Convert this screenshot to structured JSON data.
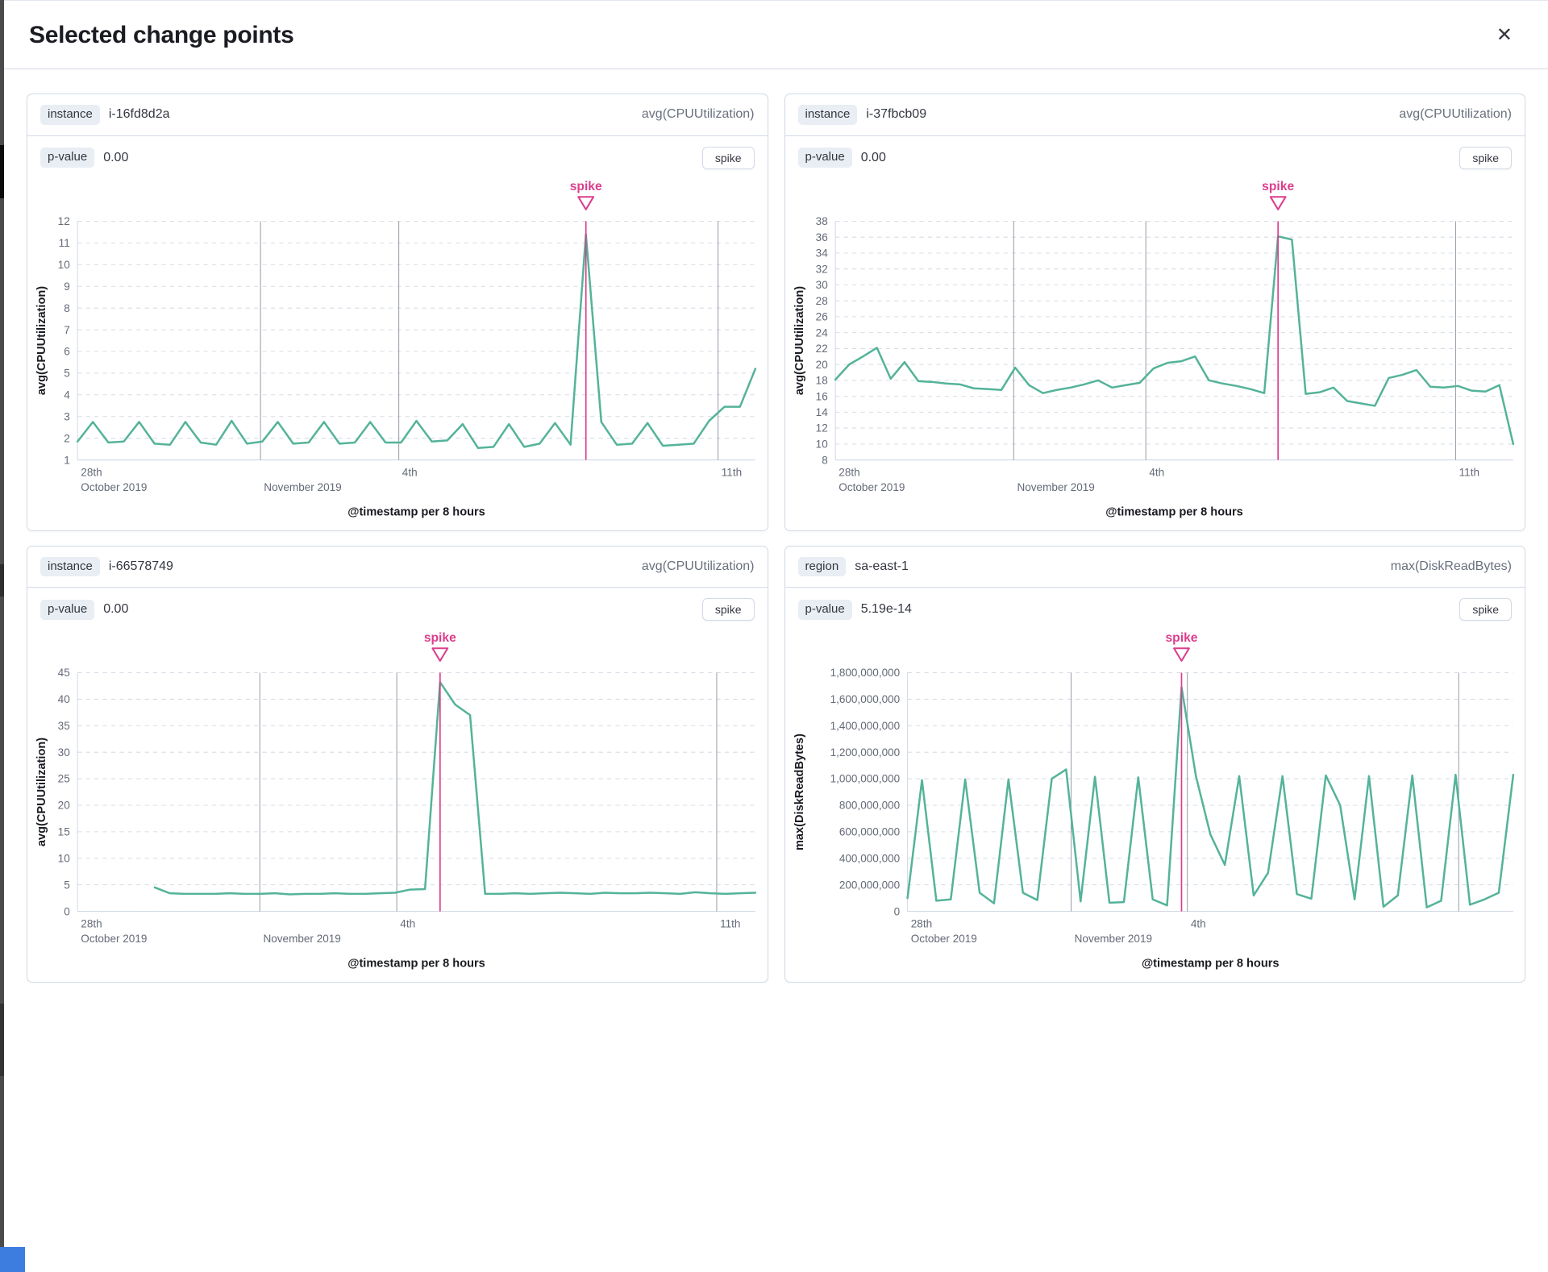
{
  "modal": {
    "title": "Selected change points",
    "close_label": "✕"
  },
  "colors": {
    "series_green": "#54b399",
    "accent_pink": "#dc3d8c",
    "grid_dashed": "#d8dce6",
    "grid_event": "#9aa0aa"
  },
  "panels": [
    {
      "field_label": "instance",
      "field_value": "i-16fd8d2a",
      "metric": "avg(CPUUtilization)",
      "p_label": "p-value",
      "p_value": "0.00",
      "change_type": "spike"
    },
    {
      "field_label": "instance",
      "field_value": "i-37fbcb09",
      "metric": "avg(CPUUtilization)",
      "p_label": "p-value",
      "p_value": "0.00",
      "change_type": "spike"
    },
    {
      "field_label": "instance",
      "field_value": "i-66578749",
      "metric": "avg(CPUUtilization)",
      "p_label": "p-value",
      "p_value": "0.00",
      "change_type": "spike"
    },
    {
      "field_label": "region",
      "field_value": "sa-east-1",
      "metric": "max(DiskReadBytes)",
      "p_label": "p-value",
      "p_value": "5.19e-14",
      "change_type": "spike"
    }
  ],
  "chart_data": [
    {
      "type": "line",
      "title": "",
      "ylabel": "avg(CPUUtilization)",
      "xlabel": "@timestamp per 8 hours",
      "ylim": [
        1,
        12
      ],
      "ytick_step": 1,
      "y_format": "plain",
      "grid": true,
      "x_ticks": [
        {
          "pos": 0.0,
          "row1": "28th",
          "row2": "October 2019",
          "line": false
        },
        {
          "pos": 0.27,
          "row1": "",
          "row2": "November 2019",
          "line": true
        },
        {
          "pos": 0.474,
          "row1": "4th",
          "row2": "",
          "line": true
        },
        {
          "pos": 0.945,
          "row1": "11th",
          "row2": "",
          "line": true
        }
      ],
      "annotation": {
        "label": "spike",
        "index": 33,
        "color": "#dc3d8c"
      },
      "series": [
        {
          "name": "avg(CPUUtilization)",
          "color": "#54b399",
          "x_start": 0,
          "values": [
            1.85,
            2.75,
            1.8,
            1.85,
            2.75,
            1.75,
            1.7,
            2.75,
            1.8,
            1.7,
            2.8,
            1.75,
            1.85,
            2.75,
            1.75,
            1.8,
            2.75,
            1.75,
            1.8,
            2.75,
            1.8,
            1.8,
            2.8,
            1.85,
            1.9,
            2.65,
            1.55,
            1.6,
            2.65,
            1.6,
            1.75,
            2.7,
            1.7,
            11.4,
            2.75,
            1.7,
            1.75,
            2.7,
            1.65,
            1.7,
            1.75,
            2.8,
            3.45,
            3.45,
            5.2
          ]
        }
      ]
    },
    {
      "type": "line",
      "title": "",
      "ylabel": "avg(CPUUtilization)",
      "xlabel": "@timestamp per 8 hours",
      "ylim": [
        8,
        38
      ],
      "ytick_step": 2,
      "y_format": "plain",
      "grid": true,
      "x_ticks": [
        {
          "pos": 0.0,
          "row1": "28th",
          "row2": "October 2019",
          "line": false
        },
        {
          "pos": 0.263,
          "row1": "",
          "row2": "November 2019",
          "line": true
        },
        {
          "pos": 0.458,
          "row1": "4th",
          "row2": "",
          "line": true
        },
        {
          "pos": 0.915,
          "row1": "11th",
          "row2": "",
          "line": true
        }
      ],
      "annotation": {
        "label": "spike",
        "index": 32,
        "color": "#dc3d8c"
      },
      "series": [
        {
          "name": "avg(CPUUtilization)",
          "color": "#54b399",
          "x_start": 0,
          "values": [
            18.1,
            20.0,
            21.0,
            22.1,
            18.2,
            20.3,
            17.9,
            17.8,
            17.6,
            17.5,
            17.0,
            16.9,
            16.8,
            19.6,
            17.4,
            16.4,
            16.8,
            17.1,
            17.5,
            18.0,
            17.1,
            17.4,
            17.7,
            19.5,
            20.2,
            20.4,
            21.0,
            18.0,
            17.6,
            17.3,
            16.9,
            16.4,
            36.1,
            35.7,
            16.3,
            16.5,
            17.1,
            15.4,
            15.1,
            14.8,
            18.3,
            18.7,
            19.3,
            17.2,
            17.1,
            17.3,
            16.7,
            16.6,
            17.4,
            10.0
          ]
        }
      ]
    },
    {
      "type": "line",
      "title": "",
      "ylabel": "avg(CPUUtilization)",
      "xlabel": "@timestamp per 8 hours",
      "ylim": [
        0,
        45
      ],
      "ytick_step": 5,
      "y_format": "plain",
      "grid": true,
      "x_ticks": [
        {
          "pos": 0.0,
          "row1": "28th",
          "row2": "October 2019",
          "line": false
        },
        {
          "pos": 0.269,
          "row1": "",
          "row2": "November 2019",
          "line": true
        },
        {
          "pos": 0.471,
          "row1": "4th",
          "row2": "",
          "line": true
        },
        {
          "pos": 0.943,
          "row1": "11th",
          "row2": "",
          "line": true
        }
      ],
      "annotation": {
        "label": "spike",
        "index": 19,
        "color": "#dc3d8c"
      },
      "series": [
        {
          "name": "avg(CPUUtilization)",
          "color": "#54b399",
          "x_start": 0.114,
          "values": [
            4.5,
            3.4,
            3.3,
            3.3,
            3.3,
            3.4,
            3.3,
            3.3,
            3.4,
            3.2,
            3.3,
            3.3,
            3.4,
            3.3,
            3.3,
            3.4,
            3.5,
            4.1,
            4.2,
            43.2,
            39.0,
            37.0,
            3.3,
            3.3,
            3.4,
            3.3,
            3.4,
            3.5,
            3.4,
            3.3,
            3.5,
            3.4,
            3.4,
            3.5,
            3.4,
            3.3,
            3.6,
            3.4,
            3.3,
            3.4,
            3.5
          ]
        }
      ]
    },
    {
      "type": "line",
      "title": "",
      "ylabel": "max(DiskReadBytes)",
      "xlabel": "@timestamp per 8 hours",
      "ylim": [
        0,
        1800000000
      ],
      "ytick_step": 200000000,
      "y_format": "comma",
      "grid": true,
      "x_ticks": [
        {
          "pos": 0.0,
          "row1": "28th",
          "row2": "October 2019",
          "line": false
        },
        {
          "pos": 0.27,
          "row1": "",
          "row2": "November 2019",
          "line": true
        },
        {
          "pos": 0.462,
          "row1": "4th",
          "row2": "",
          "line": true
        },
        {
          "pos": 0.91,
          "row1": "",
          "row2": "",
          "line": true
        }
      ],
      "annotation": {
        "label": "spike",
        "index": 19,
        "color": "#dc3d8c"
      },
      "series": [
        {
          "name": "max(DiskReadBytes)",
          "color": "#54b399",
          "x_start": 0,
          "values": [
            100000000,
            990000000,
            80000000,
            90000000,
            995000000,
            140000000,
            60000000,
            995000000,
            140000000,
            85000000,
            1000000000,
            1070000000,
            75000000,
            1015000000,
            65000000,
            70000000,
            1010000000,
            90000000,
            45000000,
            1690000000,
            1020000000,
            580000000,
            350000000,
            1020000000,
            120000000,
            290000000,
            1020000000,
            130000000,
            95000000,
            1025000000,
            800000000,
            90000000,
            1020000000,
            35000000,
            120000000,
            1025000000,
            30000000,
            80000000,
            1030000000,
            50000000,
            90000000,
            140000000,
            1030000000
          ]
        }
      ]
    }
  ]
}
